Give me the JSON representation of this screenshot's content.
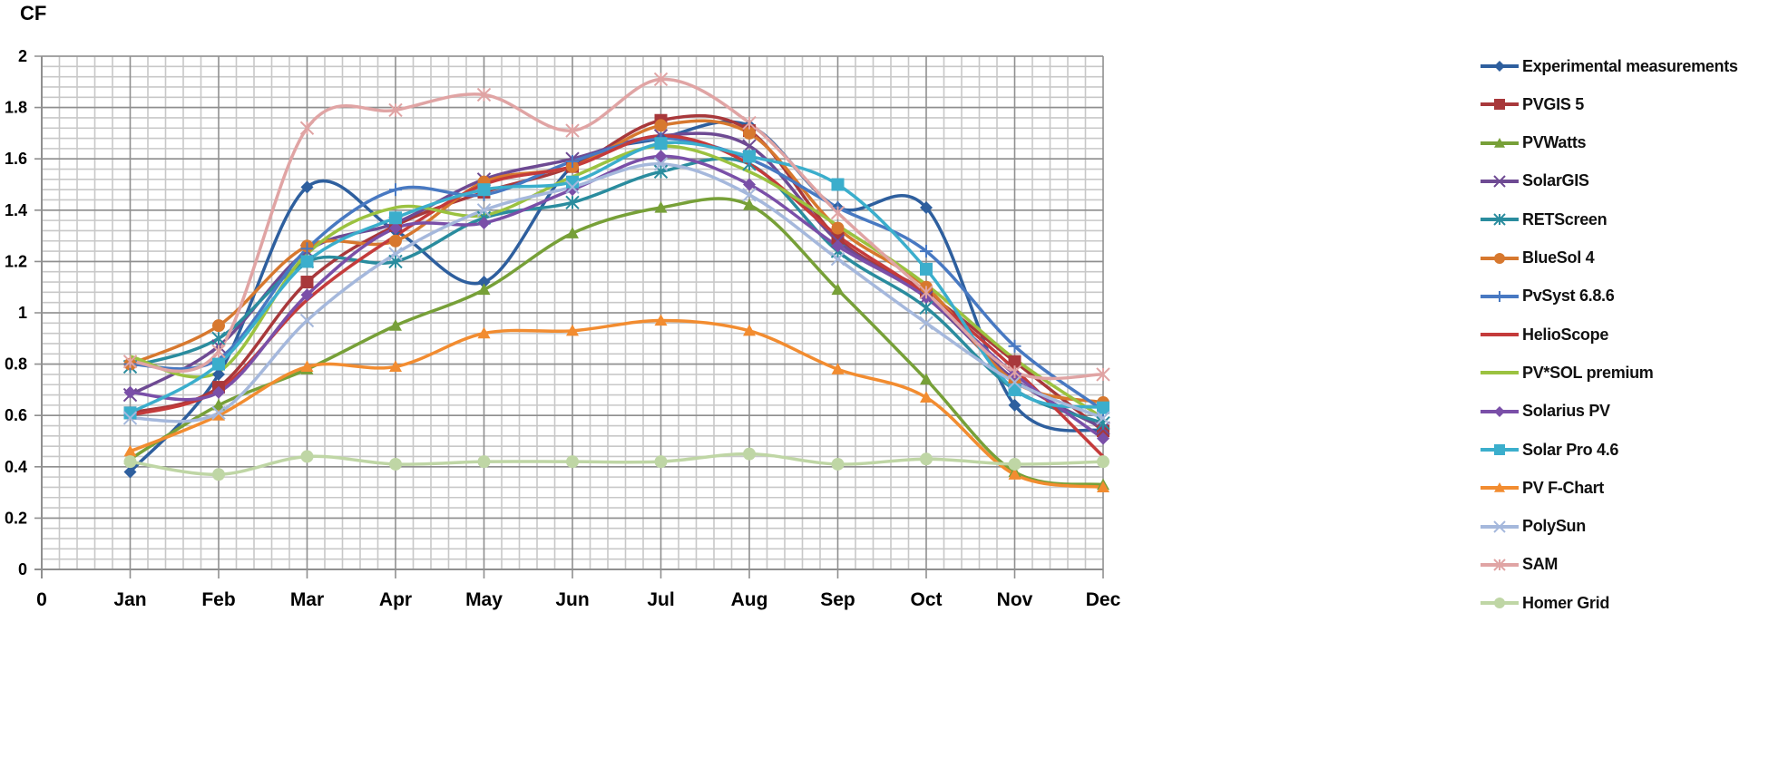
{
  "chart_data": {
    "type": "line",
    "title": "",
    "ylabel": "CF",
    "xlabel": "",
    "ylim": [
      0,
      2
    ],
    "yticks": [
      0,
      0.2,
      0.4,
      0.6,
      0.8,
      1,
      1.2,
      1.4,
      1.6,
      1.8,
      2
    ],
    "x_tick_labels": [
      "0",
      "Jan",
      "Feb",
      "Mar",
      "Apr",
      "May",
      "Jun",
      "Jul",
      "Aug",
      "Sep",
      "Oct",
      "Nov",
      "Dec"
    ],
    "categories": [
      "Jan",
      "Feb",
      "Mar",
      "Apr",
      "May",
      "Jun",
      "Jul",
      "Aug",
      "Sep",
      "Oct",
      "Nov",
      "Dec"
    ],
    "grid": true,
    "smooth": true,
    "legend_position": "right",
    "series": [
      {
        "name": "Experimental measurements",
        "color": "#2E5F9E",
        "marker": "diamond",
        "values": [
          0.38,
          0.76,
          1.49,
          1.32,
          1.12,
          1.57,
          1.68,
          1.73,
          1.41,
          1.41,
          0.64,
          0.54
        ]
      },
      {
        "name": "PVGIS 5",
        "color": "#A8383B",
        "marker": "square",
        "values": [
          0.61,
          0.71,
          1.12,
          1.34,
          1.47,
          1.57,
          1.75,
          1.71,
          1.29,
          1.08,
          0.81,
          0.54
        ]
      },
      {
        "name": "PVWatts",
        "color": "#77A038",
        "marker": "triangle",
        "values": [
          0.43,
          0.64,
          0.78,
          0.95,
          1.09,
          1.31,
          1.41,
          1.42,
          1.09,
          0.74,
          0.38,
          0.33
        ]
      },
      {
        "name": "SolarGIS",
        "color": "#6E4A93",
        "marker": "x",
        "values": [
          0.68,
          0.87,
          1.24,
          1.35,
          1.52,
          1.6,
          1.69,
          1.65,
          1.28,
          1.06,
          0.74,
          0.55
        ]
      },
      {
        "name": "RETScreen",
        "color": "#2A8C9E",
        "marker": "star",
        "values": [
          0.79,
          0.9,
          1.2,
          1.2,
          1.37,
          1.43,
          1.55,
          1.58,
          1.24,
          1.02,
          0.7,
          0.57
        ]
      },
      {
        "name": "BlueSol 4",
        "color": "#D7782E",
        "marker": "circle",
        "values": [
          0.8,
          0.95,
          1.26,
          1.28,
          1.51,
          1.57,
          1.73,
          1.7,
          1.33,
          1.1,
          0.73,
          0.65
        ]
      },
      {
        "name": "PvSyst 6.8.6",
        "color": "#4879C2",
        "marker": "plus",
        "values": [
          0.8,
          0.82,
          1.25,
          1.48,
          1.46,
          1.59,
          1.68,
          1.6,
          1.41,
          1.24,
          0.87,
          0.62
        ]
      },
      {
        "name": "HelioScope",
        "color": "#C43B3B",
        "marker": "none",
        "values": [
          0.6,
          0.7,
          1.05,
          1.3,
          1.5,
          1.57,
          1.69,
          1.58,
          1.3,
          1.07,
          0.78,
          0.44
        ]
      },
      {
        "name": "PV*SOL premium",
        "color": "#9BC240",
        "marker": "none",
        "values": [
          0.83,
          0.77,
          1.23,
          1.41,
          1.38,
          1.53,
          1.65,
          1.55,
          1.34,
          1.11,
          0.82,
          0.59
        ]
      },
      {
        "name": "Solarius PV",
        "color": "#7A4FA8",
        "marker": "diamond",
        "values": [
          0.69,
          0.69,
          1.07,
          1.33,
          1.35,
          1.48,
          1.61,
          1.5,
          1.26,
          1.06,
          0.76,
          0.51
        ]
      },
      {
        "name": "Solar Pro 4.6",
        "color": "#3BAECC",
        "marker": "square",
        "values": [
          0.61,
          0.8,
          1.2,
          1.37,
          1.48,
          1.51,
          1.66,
          1.61,
          1.5,
          1.17,
          0.7,
          0.63
        ]
      },
      {
        "name": "PV F-Chart",
        "color": "#F28C30",
        "marker": "triangle",
        "values": [
          0.46,
          0.6,
          0.79,
          0.79,
          0.92,
          0.93,
          0.97,
          0.93,
          0.78,
          0.67,
          0.37,
          0.32
        ]
      },
      {
        "name": "PolySun",
        "color": "#A5B8DC",
        "marker": "x",
        "values": [
          0.59,
          0.61,
          0.97,
          1.23,
          1.4,
          1.49,
          1.58,
          1.46,
          1.21,
          0.96,
          0.73,
          0.59
        ]
      },
      {
        "name": "SAM",
        "color": "#E0A4A4",
        "marker": "star",
        "values": [
          0.81,
          0.85,
          1.72,
          1.79,
          1.85,
          1.71,
          1.91,
          1.74,
          1.39,
          1.08,
          0.77,
          0.76
        ]
      },
      {
        "name": "Homer Grid",
        "color": "#BFD6A5",
        "marker": "circle",
        "values": [
          0.42,
          0.37,
          0.44,
          0.41,
          0.42,
          0.42,
          0.42,
          0.45,
          0.41,
          0.43,
          0.41,
          0.42
        ]
      }
    ]
  }
}
